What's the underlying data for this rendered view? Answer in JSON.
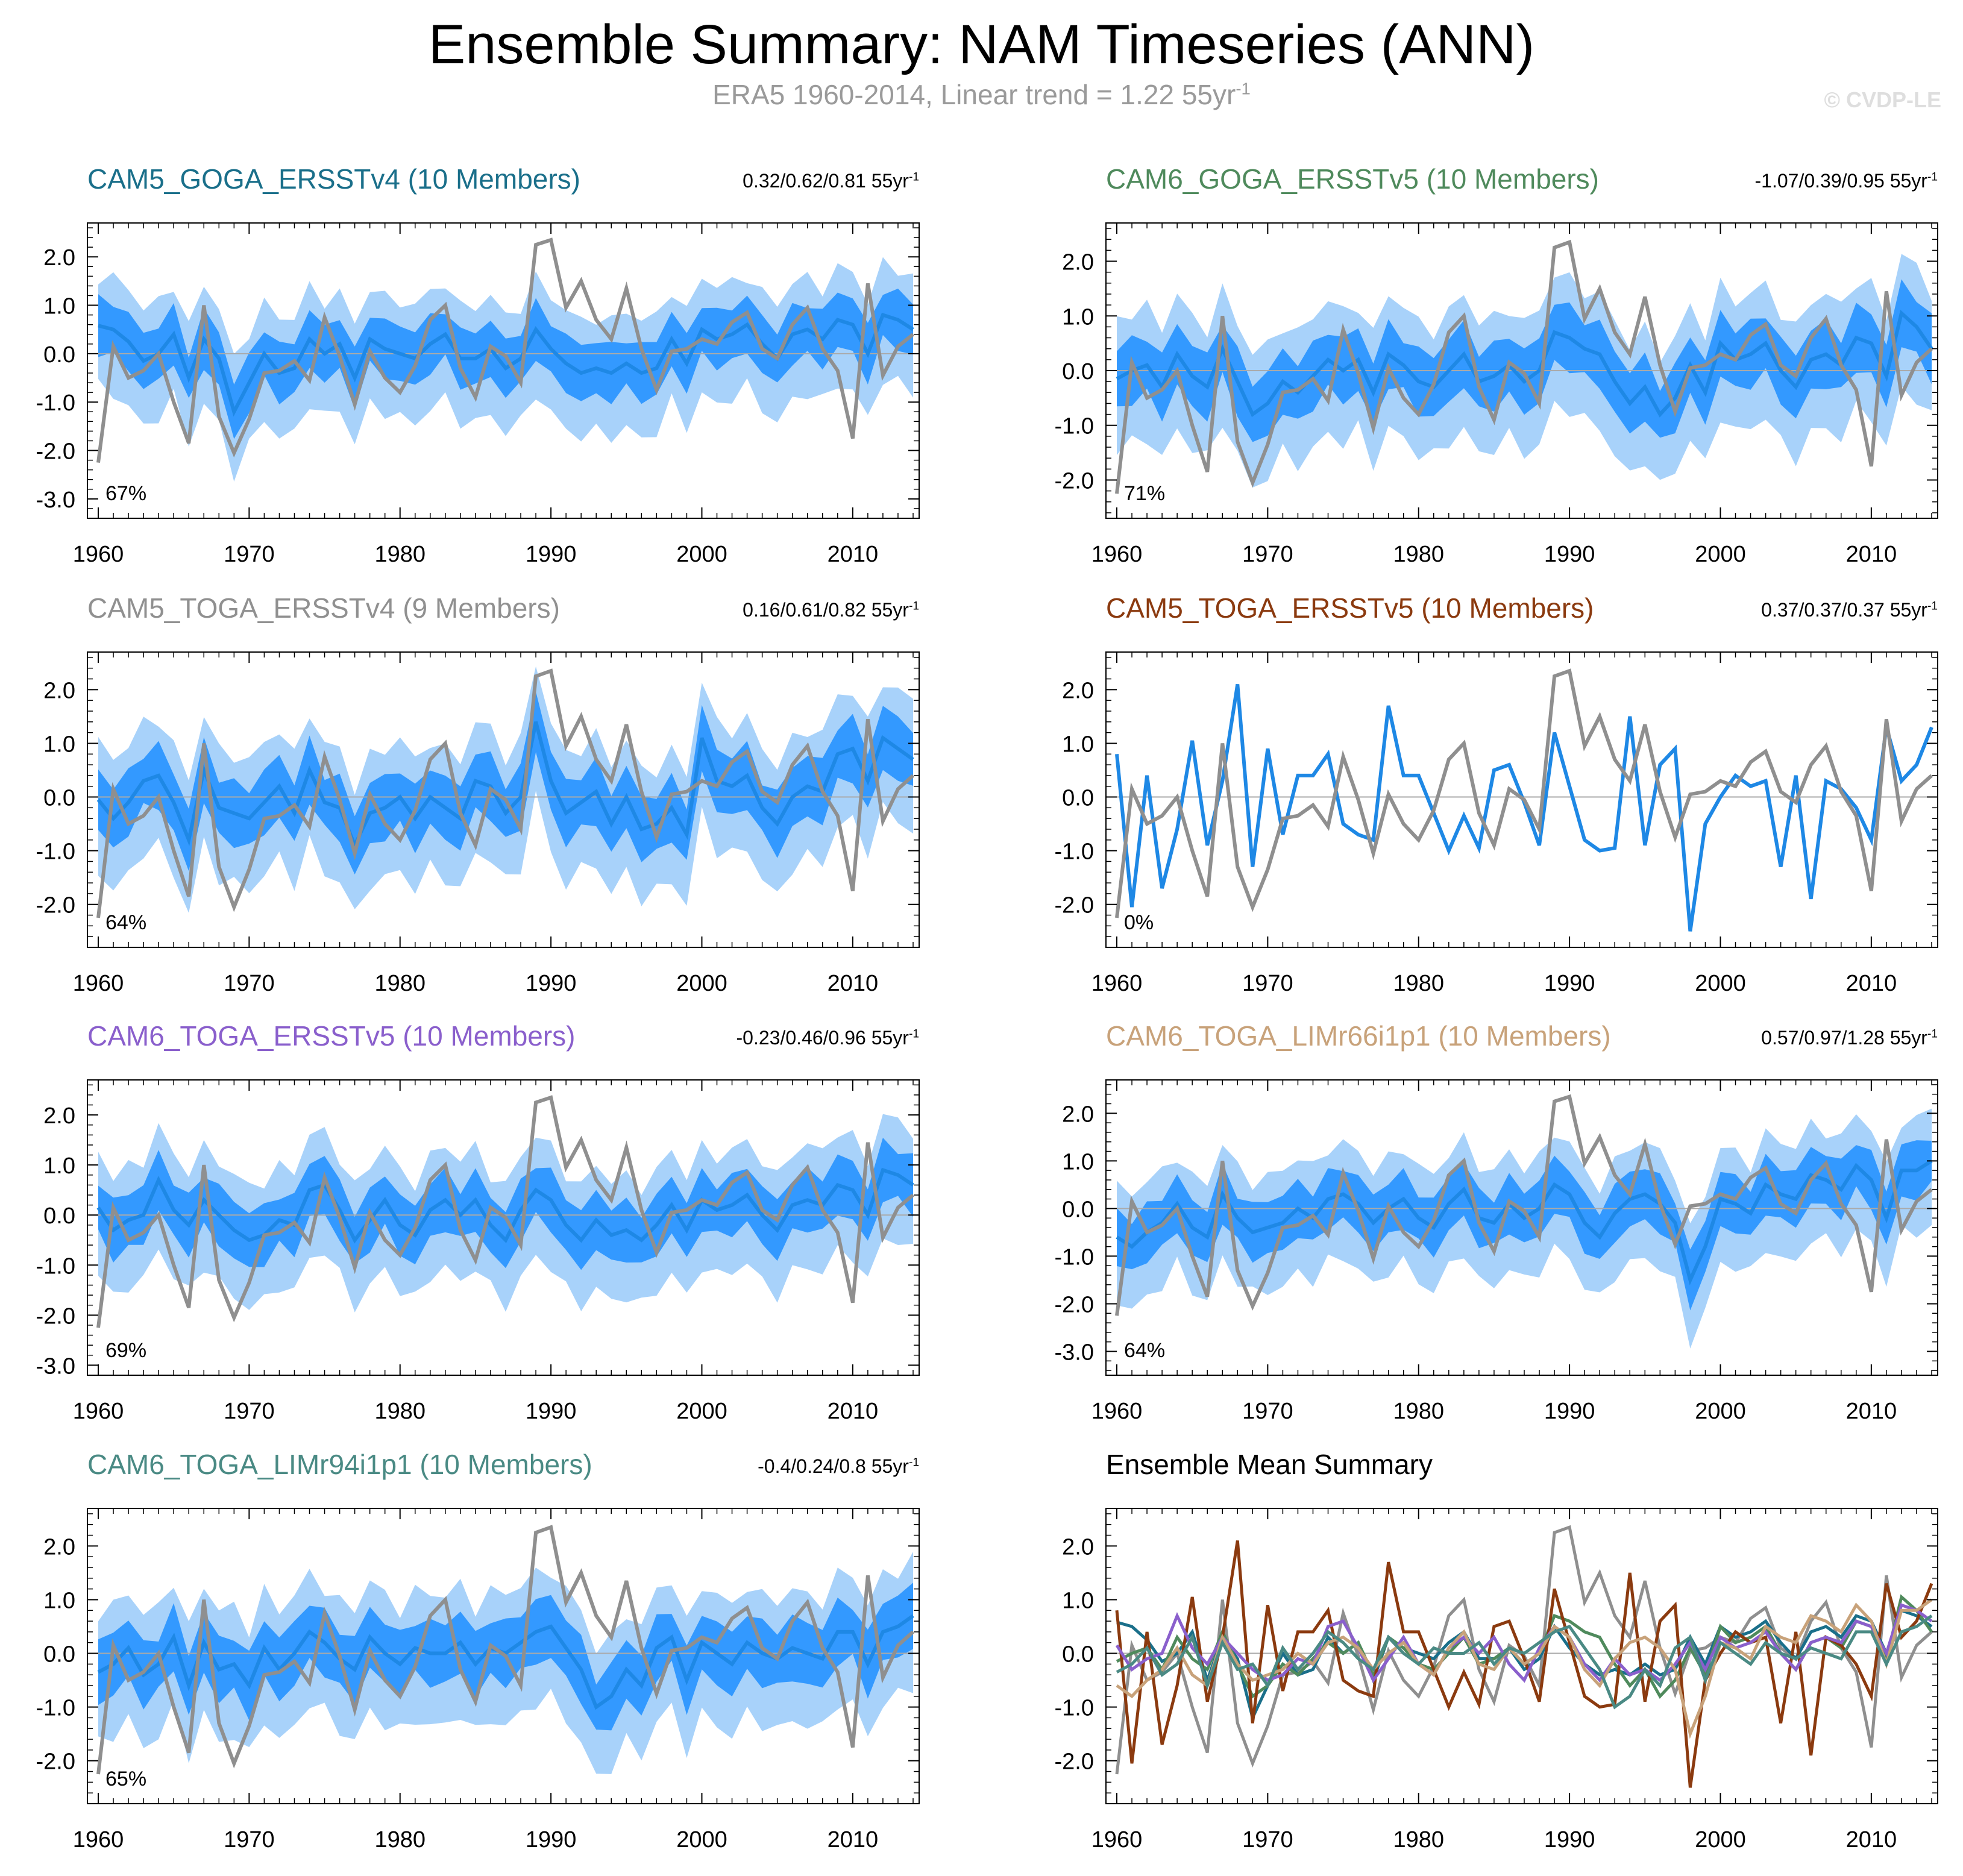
{
  "title": "Ensemble Summary: NAM Timeseries (ANN)",
  "subtitle": {
    "text": "ERA5 1960-2014, Linear trend = 1.22 55yr",
    "sup": "-1"
  },
  "copyright": "© CVDP-LE",
  "colors": {
    "band_outer": "#a8d2fa",
    "band_inner": "#3399ff",
    "ens_mean": "#1e88e5",
    "obs": "#8f8f8f",
    "zero_line": "#aaaaaa"
  },
  "obs_series": [
    -2.25,
    0.15,
    -0.5,
    -0.35,
    0.0,
    -1.0,
    -1.85,
    1.0,
    -1.3,
    -2.05,
    -1.35,
    -0.4,
    -0.35,
    -0.15,
    -0.55,
    0.75,
    -0.05,
    -1.05,
    0.05,
    -0.5,
    -0.8,
    -0.25,
    0.7,
    1.0,
    -0.3,
    -0.9,
    0.15,
    -0.05,
    -0.6,
    2.25,
    2.35,
    0.95,
    1.5,
    0.7,
    0.3,
    1.35,
    0.1,
    -0.75,
    0.05,
    0.1,
    0.3,
    0.2,
    0.65,
    0.85,
    0.1,
    -0.1,
    0.6,
    0.95,
    0.1,
    -0.35,
    -1.75,
    1.45,
    -0.45,
    0.15,
    0.4
  ],
  "chart_data": [
    {
      "type": "area",
      "panel": "CAM5_GOGA_ERSST",
      "title": "CAM5_GOGA_ERSSTv4 (10 Members)",
      "title_color": "#1a6f8a",
      "trend": "0.32/0.62/0.81 55yr",
      "trend_sup": "-1",
      "pct": "67%",
      "x_start": 1960,
      "x_end": 2014,
      "xticks": [
        "1960",
        "1970",
        "1980",
        "1990",
        "2000",
        "2010"
      ],
      "ylim": [
        -3.4,
        2.7
      ],
      "yticks": [
        "2.0",
        "1.0",
        "0.0",
        "-1.0",
        "-2.0",
        "-3.0"
      ],
      "ytick_values": [
        2,
        1,
        0,
        -1,
        -2,
        -3
      ],
      "mean": [
        0.58,
        0.5,
        0.25,
        -0.15,
        0.0,
        0.4,
        -0.5,
        0.3,
        -0.1,
        -1.2,
        -0.6,
        0.0,
        -0.4,
        -0.3,
        0.3,
        0.0,
        0.2,
        -0.5,
        0.3,
        0.1,
        0.0,
        -0.1,
        0.2,
        0.4,
        -0.1,
        -0.1,
        0.1,
        -0.3,
        -0.1,
        0.5,
        0.1,
        -0.2,
        -0.4,
        -0.3,
        -0.4,
        -0.2,
        -0.4,
        -0.3,
        0.3,
        -0.2,
        0.5,
        0.3,
        0.4,
        0.6,
        0.2,
        -0.1,
        0.4,
        0.5,
        0.3,
        0.7,
        0.6,
        0.0,
        0.8,
        0.7,
        0.5
      ]
    },
    {
      "type": "area",
      "panel": "CAM6_GOGA_ERSST",
      "title": "CAM6_GOGA_ERSSTv5 (10 Members)",
      "title_color": "#4f8a5c",
      "trend": "-1.07/0.39/0.95 55yr",
      "trend_sup": "-1",
      "pct": "71%",
      "x_start": 1960,
      "x_end": 2014,
      "xticks": [
        "1960",
        "1970",
        "1980",
        "1990",
        "2000",
        "2010"
      ],
      "ylim": [
        -2.7,
        2.7
      ],
      "yticks": [
        "2.0",
        "1.0",
        "0.0",
        "-1.0",
        "-2.0"
      ],
      "ytick_values": [
        2,
        1,
        0,
        -1,
        -2
      ],
      "mean": [
        -0.15,
        0.0,
        0.1,
        -0.3,
        0.3,
        -0.1,
        -0.3,
        0.4,
        -0.2,
        -0.8,
        -0.6,
        -0.2,
        -0.4,
        -0.1,
        0.2,
        0.0,
        0.2,
        -0.4,
        0.3,
        0.1,
        -0.2,
        -0.3,
        0.0,
        0.3,
        -0.2,
        -0.1,
        0.1,
        -0.2,
        0.0,
        0.7,
        0.6,
        0.4,
        0.3,
        -0.2,
        -0.6,
        -0.3,
        -0.8,
        -0.5,
        0.1,
        -0.4,
        0.5,
        0.2,
        0.3,
        0.5,
        0.0,
        -0.3,
        0.2,
        0.3,
        0.1,
        0.6,
        0.5,
        -0.1,
        1.05,
        0.8,
        0.4
      ]
    },
    {
      "type": "area",
      "panel": "CAM5_TOGA_ERSSTv4",
      "title": "CAM5_TOGA_ERSSTv4 (9 Members)",
      "title_color": "#909090",
      "trend": "0.16/0.61/0.82 55yr",
      "trend_sup": "-1",
      "pct": "64%",
      "x_start": 1960,
      "x_end": 2014,
      "xticks": [
        "1960",
        "1970",
        "1980",
        "1990",
        "2000",
        "2010"
      ],
      "ylim": [
        -2.8,
        2.7
      ],
      "yticks": [
        "2.0",
        "1.0",
        "0.0",
        "-1.0",
        "-2.0"
      ],
      "ytick_values": [
        2,
        1,
        0,
        -1,
        -2
      ],
      "mean": [
        -0.05,
        -0.4,
        -0.1,
        0.3,
        0.4,
        -0.1,
        -0.8,
        0.5,
        -0.2,
        -0.3,
        -0.4,
        -0.1,
        0.2,
        -0.3,
        0.5,
        -0.1,
        -0.2,
        -0.9,
        -0.3,
        -0.2,
        0.0,
        -0.4,
        0.0,
        -0.2,
        -0.4,
        0.3,
        0.2,
        -0.3,
        0.0,
        1.4,
        0.3,
        -0.3,
        -0.1,
        0.1,
        -0.5,
        0.0,
        -0.6,
        -0.5,
        -0.2,
        -0.7,
        1.1,
        0.3,
        0.2,
        0.4,
        -0.2,
        -0.5,
        0.0,
        0.2,
        0.1,
        0.8,
        0.9,
        0.3,
        1.1,
        0.9,
        0.7
      ]
    },
    {
      "type": "line",
      "panel": "CAM5_TOGA_ERSSTv5",
      "title": "CAM5_TOGA_ERSSTv5 (10 Members)",
      "title_color": "#8b3a0f",
      "trend": "0.37/0.37/0.37 55yr",
      "trend_sup": "-1",
      "pct": "0%",
      "x_start": 1960,
      "x_end": 2014,
      "xticks": [
        "1960",
        "1970",
        "1980",
        "1990",
        "2000",
        "2010"
      ],
      "ylim": [
        -2.8,
        2.7
      ],
      "yticks": [
        "2.0",
        "1.0",
        "0.0",
        "-1.0",
        "-2.0"
      ],
      "ytick_values": [
        2,
        1,
        0,
        -1,
        -2
      ],
      "mean": [
        0.8,
        -2.05,
        0.4,
        -1.7,
        -0.6,
        1.05,
        -0.9,
        0.3,
        2.1,
        -1.3,
        0.9,
        -0.7,
        0.4,
        0.4,
        0.8,
        -0.5,
        -0.7,
        -0.8,
        1.7,
        0.4,
        0.4,
        -0.3,
        -1.0,
        -0.35,
        -0.95,
        0.5,
        0.6,
        -0.1,
        -0.9,
        1.2,
        0.2,
        -0.8,
        -1.0,
        -0.95,
        1.5,
        -0.9,
        0.6,
        0.9,
        -2.5,
        -0.5,
        0.0,
        0.4,
        0.2,
        0.3,
        -1.3,
        0.4,
        -1.9,
        0.3,
        0.15,
        -0.2,
        -0.8,
        1.3,
        0.3,
        0.6,
        1.3
      ]
    },
    {
      "type": "area",
      "panel": "CAM6_TOGA_ERSSTv5",
      "title": "CAM6_TOGA_ERSSTv5 (10 Members)",
      "title_color": "#8a5fcc",
      "trend": "-0.23/0.46/0.96 55yr",
      "trend_sup": "-1",
      "pct": "69%",
      "x_start": 1960,
      "x_end": 2014,
      "xticks": [
        "1960",
        "1970",
        "1980",
        "1990",
        "2000",
        "2010"
      ],
      "ylim": [
        -3.2,
        2.7
      ],
      "yticks": [
        "2.0",
        "1.0",
        "0.0",
        "-1.0",
        "-2.0",
        "-3.0"
      ],
      "ytick_values": [
        2,
        1,
        0,
        -1,
        -2,
        -3
      ],
      "mean": [
        0.15,
        -0.3,
        -0.1,
        0.0,
        0.7,
        0.1,
        -0.2,
        0.3,
        0.0,
        -0.3,
        -0.5,
        -0.4,
        -0.1,
        -0.2,
        0.5,
        0.6,
        0.1,
        -0.5,
        -0.1,
        0.3,
        -0.2,
        -0.4,
        0.1,
        0.3,
        0.0,
        0.3,
        -0.2,
        -0.5,
        0.1,
        0.5,
        0.3,
        -0.2,
        -0.5,
        -0.1,
        -0.4,
        -0.3,
        -0.5,
        -0.2,
        0.2,
        -0.3,
        0.3,
        0.1,
        0.2,
        0.4,
        0.0,
        -0.3,
        0.2,
        0.3,
        0.2,
        0.6,
        0.5,
        0.0,
        0.9,
        0.8,
        0.6
      ]
    },
    {
      "type": "area",
      "panel": "CAM6_TOGA_LIMr66i1p1",
      "title": "CAM6_TOGA_LIMr66i1p1 (10 Members)",
      "title_color": "#c8a27a",
      "trend": "0.57/0.97/1.28 55yr",
      "trend_sup": "-1",
      "pct": "64%",
      "x_start": 1960,
      "x_end": 2014,
      "xticks": [
        "1960",
        "1970",
        "1980",
        "1990",
        "2000",
        "2010"
      ],
      "ylim": [
        -3.5,
        2.7
      ],
      "yticks": [
        "2.0",
        "1.0",
        "0.0",
        "-1.0",
        "-2.0",
        "-3.0"
      ],
      "ytick_values": [
        2,
        1,
        0,
        -1,
        -2,
        -3
      ],
      "mean": [
        -0.6,
        -0.8,
        -0.5,
        -0.3,
        0.1,
        -0.4,
        -0.6,
        0.3,
        -0.2,
        -0.5,
        -0.4,
        -0.3,
        0.0,
        -0.2,
        0.2,
        0.3,
        0.1,
        -0.3,
        0.0,
        0.2,
        -0.2,
        -0.4,
        0.1,
        0.4,
        -0.2,
        -0.3,
        0.1,
        -0.2,
        0.0,
        0.5,
        0.3,
        -0.3,
        -0.6,
        -0.1,
        0.2,
        0.3,
        0.1,
        -0.3,
        -1.5,
        -0.8,
        0.2,
        0.1,
        -0.1,
        0.5,
        0.3,
        0.2,
        0.7,
        0.6,
        0.4,
        0.9,
        0.6,
        -0.2,
        0.8,
        0.8,
        1.0
      ]
    },
    {
      "type": "area",
      "panel": "CAM6_TOGA_LIMr94i1p1",
      "title": "CAM6_TOGA_LIMr94i1p1 (10 Members)",
      "title_color": "#4a8a84",
      "trend": "-0.4/0.24/0.8 55yr",
      "trend_sup": "-1",
      "pct": "65%",
      "x_start": 1960,
      "x_end": 2014,
      "xticks": [
        "1960",
        "1970",
        "1980",
        "1990",
        "2000",
        "2010"
      ],
      "ylim": [
        -2.8,
        2.7
      ],
      "yticks": [
        "2.0",
        "1.0",
        "0.0",
        "-1.0",
        "-2.0"
      ],
      "ytick_values": [
        2,
        1,
        0,
        -1,
        -2
      ],
      "mean": [
        -0.35,
        -0.2,
        0.1,
        -0.4,
        -0.2,
        0.3,
        -0.6,
        0.2,
        -0.3,
        -0.2,
        -0.6,
        0.1,
        -0.3,
        0.0,
        0.4,
        0.2,
        -0.1,
        -0.3,
        0.3,
        0.0,
        -0.2,
        0.1,
        0.0,
        0.0,
        0.2,
        -0.2,
        0.1,
        0.0,
        0.2,
        0.4,
        0.5,
        0.1,
        -0.3,
        -1.0,
        -0.8,
        -0.3,
        -0.6,
        0.1,
        0.3,
        -0.5,
        0.2,
        0.0,
        -0.2,
        0.2,
        0.0,
        -0.1,
        0.1,
        0.0,
        -0.1,
        0.4,
        0.4,
        -0.2,
        0.4,
        0.5,
        0.7
      ]
    },
    {
      "type": "line",
      "panel": "EnsembleMeanSummary",
      "title": "Ensemble Mean Summary",
      "title_color": "#000000",
      "x_start": 1960,
      "x_end": 2014,
      "xticks": [
        "1960",
        "1970",
        "1980",
        "1990",
        "2000",
        "2010"
      ],
      "ylim": [
        -2.8,
        2.7
      ],
      "yticks": [
        "2.0",
        "1.0",
        "0.0",
        "-1.0",
        "-2.0"
      ],
      "ytick_values": [
        2,
        1,
        0,
        -1,
        -2
      ],
      "series_refs": [
        {
          "ref": 0,
          "color": "#1a6f8a"
        },
        {
          "ref": 1,
          "color": "#4f8a5c"
        },
        {
          "ref": 2,
          "color": "#909090"
        },
        {
          "ref": 3,
          "color": "#8b3a0f"
        },
        {
          "ref": 4,
          "color": "#8a5fcc"
        },
        {
          "ref": 5,
          "color": "#c8a27a"
        },
        {
          "ref": 6,
          "color": "#4a8a84"
        }
      ]
    }
  ]
}
